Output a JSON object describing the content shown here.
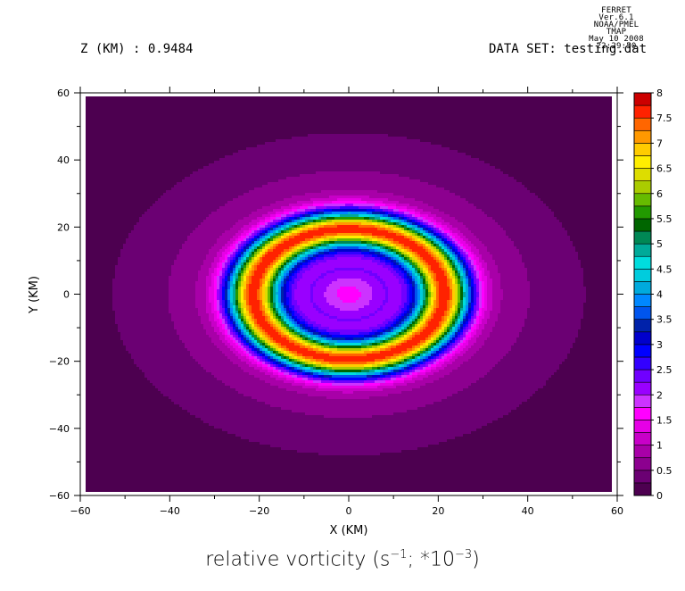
{
  "header": {
    "line1": "FERRET Ver.6.1",
    "line2": "NOAA/PMEL TMAP",
    "line3": "May 10 2008 22:29:50"
  },
  "z_label": "Z (KM) : 0.9484",
  "dataset_label": "DATA SET: testing.dat",
  "title_main": "relative vorticity (s",
  "title_sup1": "−1",
  "title_mid": "; *10",
  "title_sup2": "−3",
  "title_end": ")",
  "chart_data": {
    "type": "heatmap",
    "title": "relative vorticity (s^-1; *10^-3)",
    "xlabel": "X (KM)",
    "ylabel": "Y (KM)",
    "xlim": [
      -60,
      60
    ],
    "ylim": [
      -60,
      60
    ],
    "x_ticks": [
      "-60",
      "-40",
      "-20",
      "0",
      "20",
      "40",
      "60"
    ],
    "y_ticks": [
      "60",
      "40",
      "20",
      "0",
      "-20",
      "-40",
      "-60"
    ],
    "color_levels": [
      0,
      0.25,
      0.5,
      0.75,
      1,
      1.25,
      1.5,
      1.75,
      2,
      2.25,
      2.5,
      2.75,
      3,
      3.25,
      3.5,
      3.75,
      4,
      4.25,
      4.5,
      4.75,
      5,
      5.25,
      5.5,
      5.75,
      6,
      6.25,
      6.5,
      6.75,
      7,
      7.25,
      7.5,
      7.75,
      8
    ],
    "colorbar_labels": [
      "0",
      "0.5",
      "1",
      "1.5",
      "2",
      "2.5",
      "3",
      "3.5",
      "4",
      "4.5",
      "5",
      "5.5",
      "6",
      "6.5",
      "7",
      "7.5",
      "8"
    ],
    "colors": [
      "#4d0050",
      "#6b0073",
      "#8c008f",
      "#a800a8",
      "#c800c8",
      "#e600e6",
      "#ff00ff",
      "#cc33ff",
      "#9900ff",
      "#7000ff",
      "#3300ff",
      "#0000ff",
      "#0000cc",
      "#0022aa",
      "#0055ee",
      "#0088ff",
      "#00aadd",
      "#00ccdd",
      "#00dddd",
      "#00aa99",
      "#008855",
      "#006600",
      "#229900",
      "#66bb00",
      "#aacc00",
      "#dddd00",
      "#ffee00",
      "#ffcc00",
      "#ff9900",
      "#ff6600",
      "#ff2200",
      "#cc0000",
      "#880000"
    ],
    "field": {
      "description_fit": "radial ring vortex centered at origin",
      "center_value": 1.7,
      "core_radius_km": 8,
      "ring_peak_radius_km": 20,
      "ring_peak_value": 6.5,
      "outer_background_value": 0.1
    }
  }
}
